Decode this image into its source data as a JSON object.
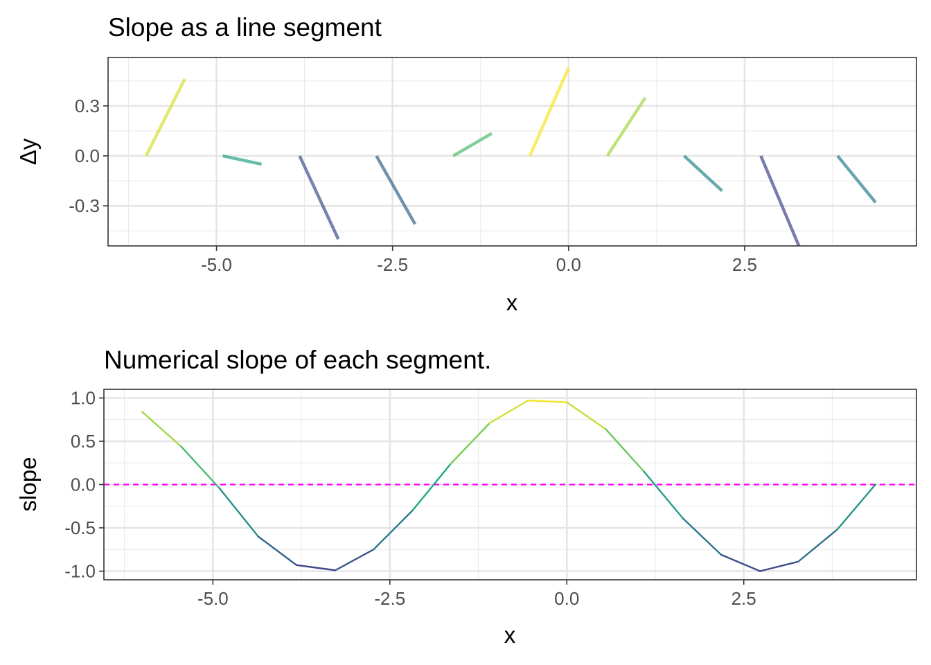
{
  "chart_data": [
    {
      "type": "segment",
      "title": "Slope as a line segment",
      "xlabel": "x",
      "ylabel": "Δy",
      "xlim": [
        -6.54,
        4.94
      ],
      "ylim": [
        -0.5405,
        0.5905
      ],
      "xticks": [
        -5.0,
        -2.5,
        0.0,
        2.5
      ],
      "xtick_labels": [
        "-5.0",
        "-2.5",
        "0.0",
        "2.5"
      ],
      "yticks": [
        -0.3,
        0.0,
        0.3
      ],
      "ytick_labels": [
        "-0.3",
        "0.0",
        "0.3"
      ],
      "grid": true,
      "segments": [
        {
          "x": -6.0,
          "xend": -5.45,
          "yend": 0.462
        },
        {
          "x": -4.91,
          "xend": -4.36,
          "yend": -0.05
        },
        {
          "x": -3.82,
          "xend": -3.27,
          "yend": -0.5
        },
        {
          "x": -2.73,
          "xend": -2.18,
          "yend": -0.41
        },
        {
          "x": -1.64,
          "xend": -1.09,
          "yend": 0.135
        },
        {
          "x": -0.55,
          "xend": 0.0,
          "yend": 0.529
        },
        {
          "x": 0.55,
          "xend": 1.09,
          "yend": 0.35
        },
        {
          "x": 1.64,
          "xend": 2.18,
          "yend": -0.21
        },
        {
          "x": 2.73,
          "xend": 3.27,
          "yend": -0.54
        },
        {
          "x": 3.82,
          "xend": 4.36,
          "yend": -0.28
        }
      ],
      "color_note": "segment color follows slope on a viridis-like scale",
      "colors": {
        "high": "#fde725",
        "mid_high": "#7ad151",
        "mid": "#22a884",
        "low": "#2a788e",
        "lowest": "#414487"
      }
    },
    {
      "type": "line",
      "title": "Numerical slope of each segment.",
      "xlabel": "x",
      "ylabel": "slope",
      "xlim": [
        -6.54,
        4.94
      ],
      "ylim": [
        -1.1,
        1.1
      ],
      "xticks": [
        -5.0,
        -2.5,
        0.0,
        2.5
      ],
      "xtick_labels": [
        "-5.0",
        "-2.5",
        "0.0",
        "2.5"
      ],
      "yticks": [
        -1.0,
        -0.5,
        0.0,
        0.5,
        1.0
      ],
      "ytick_labels": [
        "-1.0",
        "-0.5",
        "0.0",
        "0.5",
        "1.0"
      ],
      "grid": true,
      "x": [
        -6.0,
        -5.45,
        -4.91,
        -4.36,
        -3.82,
        -3.27,
        -2.73,
        -2.18,
        -1.64,
        -1.09,
        -0.55,
        0.0,
        0.55,
        1.09,
        1.64,
        2.18,
        2.73,
        3.27,
        3.82,
        4.36
      ],
      "y": [
        0.84,
        0.44,
        -0.04,
        -0.6,
        -0.93,
        -0.99,
        -0.75,
        -0.3,
        0.24,
        0.71,
        0.97,
        0.95,
        0.64,
        0.15,
        -0.39,
        -0.81,
        -1.0,
        -0.89,
        -0.52,
        0.0
      ],
      "reference_line": {
        "y": 0.0,
        "style": "dashed",
        "color": "#ff00ff"
      },
      "colors": {
        "high": "#fde725",
        "mid_high": "#7ad151",
        "mid": "#22a884",
        "low": "#2a788e",
        "lowest": "#414487"
      }
    }
  ]
}
